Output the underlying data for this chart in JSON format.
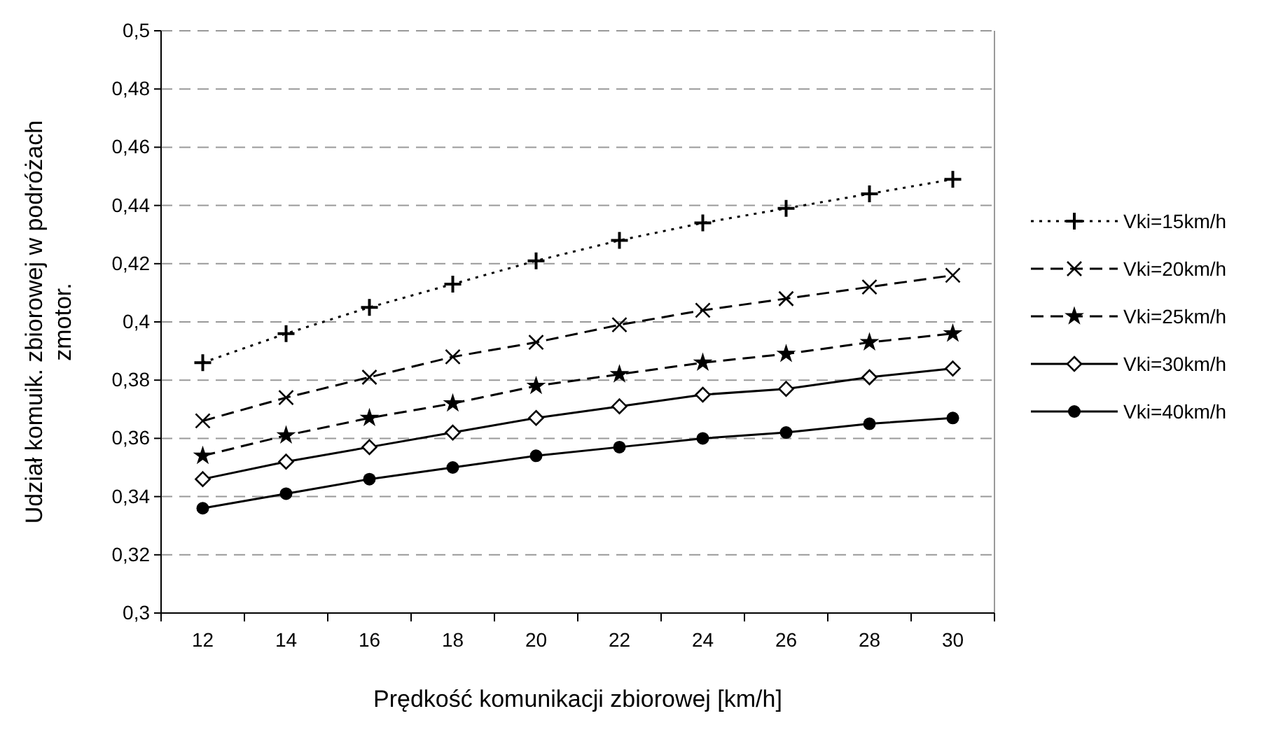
{
  "chart_data": {
    "type": "line",
    "xlabel": "Prędkość komunikacji zbiorowej [km/h]",
    "ylabel": "Udział komuik. zbiorowej w podróżach zmotor.",
    "categories": [
      "12",
      "14",
      "16",
      "18",
      "20",
      "22",
      "24",
      "26",
      "28",
      "30"
    ],
    "series": [
      {
        "name": "Vki=15km/h",
        "color": "#000000",
        "marker": "cross",
        "line_style": "dotted",
        "values": [
          0.386,
          0.396,
          0.405,
          0.413,
          0.421,
          0.428,
          0.434,
          0.439,
          0.444,
          0.449
        ]
      },
      {
        "name": "Vki=20km/h",
        "color": "#000000",
        "marker": "x",
        "line_style": "dashed",
        "values": [
          0.366,
          0.374,
          0.381,
          0.388,
          0.393,
          0.399,
          0.404,
          0.408,
          0.412,
          0.416
        ]
      },
      {
        "name": "Vki=25km/h",
        "color": "#000000",
        "marker": "star",
        "line_style": "dashed",
        "values": [
          0.354,
          0.361,
          0.367,
          0.372,
          0.378,
          0.382,
          0.386,
          0.389,
          0.393,
          0.396
        ]
      },
      {
        "name": "Vki=30km/h",
        "color": "#000000",
        "marker": "diamond",
        "line_style": "solid",
        "values": [
          0.346,
          0.352,
          0.357,
          0.362,
          0.367,
          0.371,
          0.375,
          0.377,
          0.381,
          0.384
        ]
      },
      {
        "name": "Vki=40km/h",
        "color": "#000000",
        "marker": "circle",
        "line_style": "solid",
        "values": [
          0.336,
          0.341,
          0.346,
          0.35,
          0.354,
          0.357,
          0.36,
          0.362,
          0.365,
          0.367
        ]
      }
    ],
    "ylim": [
      0.3,
      0.5
    ],
    "yticks": [
      {
        "value": 0.3,
        "label": "0,3"
      },
      {
        "value": 0.32,
        "label": "0,32"
      },
      {
        "value": 0.34,
        "label": "0,34"
      },
      {
        "value": 0.36,
        "label": "0,36"
      },
      {
        "value": 0.38,
        "label": "0,38"
      },
      {
        "value": 0.4,
        "label": "0,4"
      },
      {
        "value": 0.42,
        "label": "0,42"
      },
      {
        "value": 0.44,
        "label": "0,44"
      },
      {
        "value": 0.46,
        "label": "0,46"
      },
      {
        "value": 0.48,
        "label": "0,48"
      },
      {
        "value": 0.5,
        "label": "0,5"
      }
    ],
    "grid": "y",
    "legend": "right"
  }
}
